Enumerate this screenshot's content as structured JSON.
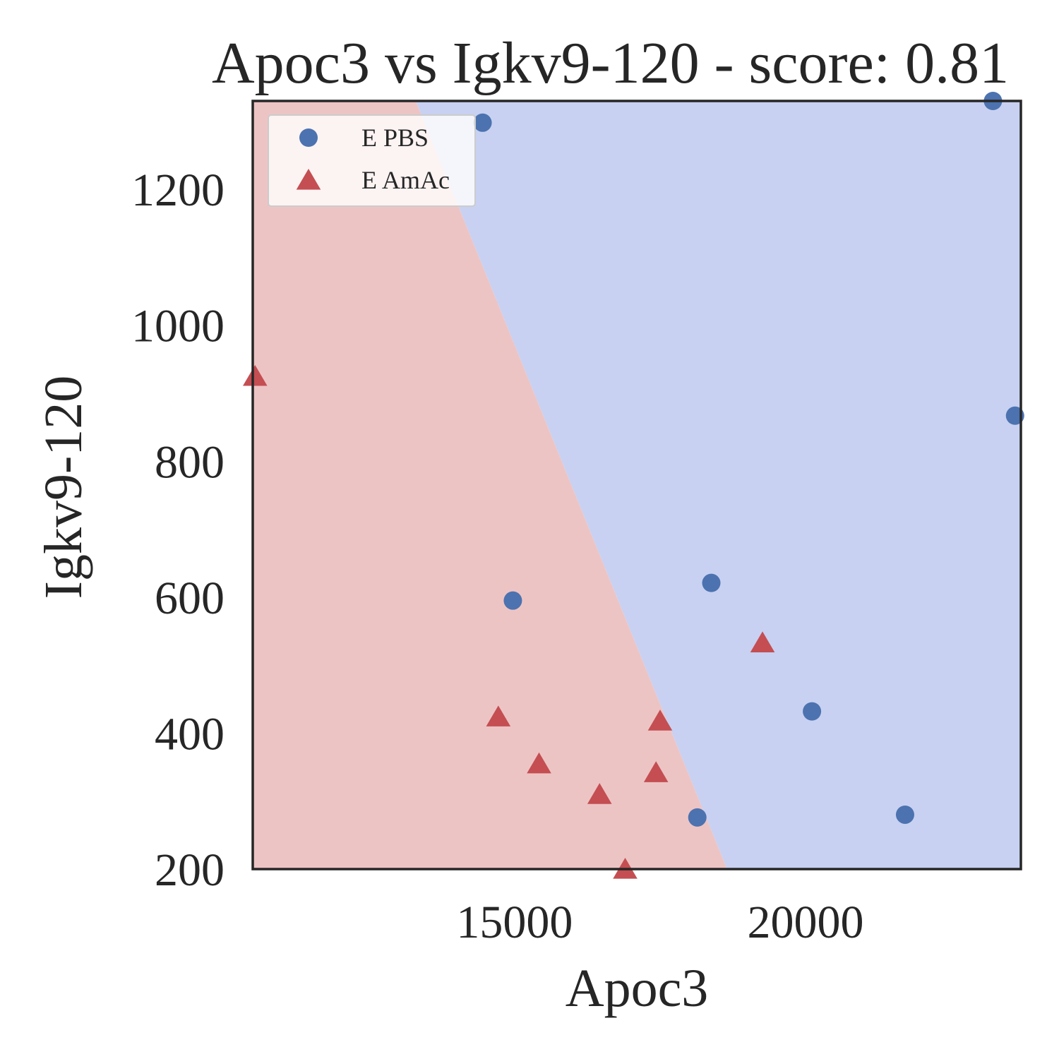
{
  "chart_data": {
    "type": "scatter",
    "title": "Apoc3 vs Igkv9-120 - score: 0.81",
    "xlabel": "Apoc3",
    "ylabel": "Igkv9-120",
    "xlim": [
      10500,
      23700
    ],
    "ylim": [
      200,
      1330
    ],
    "xticks": [
      15000,
      20000
    ],
    "yticks": [
      200,
      400,
      600,
      800,
      1000,
      1200
    ],
    "grid": false,
    "legend_position": "top-left",
    "decision_regions": {
      "boundary": [
        [
          13300,
          1330
        ],
        [
          18650,
          200
        ]
      ],
      "left_class": "E AmAc",
      "right_class": "E PBS",
      "colors": {
        "E AmAc": "#edc4c4",
        "E PBS": "#c8d1f1"
      }
    },
    "series": [
      {
        "name": "E PBS",
        "marker": "circle",
        "color": "#4c72b0",
        "points": [
          [
            14450,
            1298
          ],
          [
            14970,
            595
          ],
          [
            18380,
            621
          ],
          [
            18140,
            276
          ],
          [
            20110,
            432
          ],
          [
            21710,
            280
          ],
          [
            23220,
            1330
          ],
          [
            23600,
            867
          ]
        ]
      },
      {
        "name": "E AmAc",
        "marker": "triangle",
        "color": "#c44e52",
        "points": [
          [
            10540,
            925
          ],
          [
            14720,
            424
          ],
          [
            15420,
            355
          ],
          [
            16460,
            310
          ],
          [
            16900,
            200
          ],
          [
            17430,
            342
          ],
          [
            17500,
            418
          ],
          [
            19260,
            533
          ]
        ]
      }
    ]
  }
}
